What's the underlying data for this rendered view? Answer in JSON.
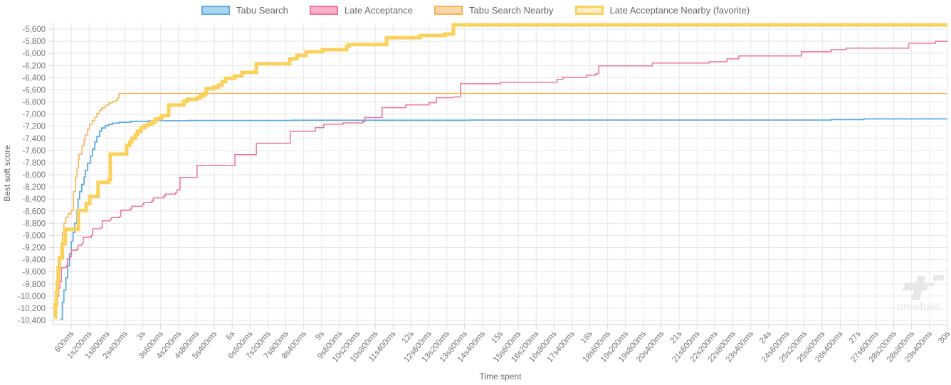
{
  "legend": [
    {
      "label": "Tabu Search",
      "color": "#5FAADE",
      "fill": "#A8D4F0",
      "border_width": 2
    },
    {
      "label": "Late Acceptance",
      "color": "#F0719A",
      "fill": "#F9AFC7",
      "border_width": 2
    },
    {
      "label": "Tabu Search Nearby",
      "color": "#F7B155",
      "fill": "#FBD8A9",
      "border_width": 2
    },
    {
      "label": "Late Acceptance Nearby (favorite)",
      "color": "#FAD15C",
      "fill": "#FDEFC4",
      "border_width": 3
    }
  ],
  "watermark": {
    "text": "timefold"
  },
  "chart_data": {
    "type": "line",
    "stepped": true,
    "title": "",
    "xlabel": "Time spent",
    "ylabel": "Best soft score",
    "grid": true,
    "legend_position": "top",
    "x_unit": "ms",
    "xlim": [
      0,
      30000
    ],
    "ylim": [
      -10520,
      -5520
    ],
    "x_tick_interval_ms": 600,
    "x_tick_labels": [
      "600ms",
      "1s200ms",
      "1s800ms",
      "2s400ms",
      "3s",
      "3s600ms",
      "4s200ms",
      "4s800ms",
      "5s400ms",
      "6s",
      "6s600ms",
      "7s200ms",
      "7s800ms",
      "8s400ms",
      "9s",
      "9s600ms",
      "10s200ms",
      "10s800ms",
      "11s400ms",
      "12s",
      "12s600ms",
      "13s200ms",
      "13s800ms",
      "14s400ms",
      "15s",
      "15s600ms",
      "16s200ms",
      "16s800ms",
      "17s400ms",
      "18s",
      "18s600ms",
      "19s200ms",
      "19s800ms",
      "20s400ms",
      "21s",
      "21s600ms",
      "22s200ms",
      "22s800ms",
      "23s400ms",
      "24s",
      "24s600ms",
      "25s200ms",
      "25s800ms",
      "26s400ms",
      "27s",
      "27s600ms",
      "28s200ms",
      "28s800ms",
      "29s400ms",
      "30s"
    ],
    "y_ticks": [
      -5600,
      -5800,
      -6000,
      -6200,
      -6400,
      -6600,
      -6800,
      -7000,
      -7200,
      -7400,
      -7600,
      -7800,
      -8000,
      -8200,
      -8400,
      -8600,
      -8800,
      -9000,
      -9200,
      -9400,
      -9600,
      -9800,
      -10000,
      -10200,
      -10400
    ],
    "y_tick_labels": [
      "-5,600",
      "-5,800",
      "-6,000",
      "-6,200",
      "-6,400",
      "-6,600",
      "-6,800",
      "-7,000",
      "-7,200",
      "-7,400",
      "-7,600",
      "-7,800",
      "-8,000",
      "-8,200",
      "-8,400",
      "-8,600",
      "-8,800",
      "-9,000",
      "-9,200",
      "-9,400",
      "-9,600",
      "-9,800",
      "-10,000",
      "-10,200",
      "-10,400"
    ],
    "series": [
      {
        "name": "Tabu Search",
        "color": "#5FAADE",
        "line_width": 1.8,
        "final_score": -7080,
        "points": [
          [
            240,
            -10380
          ],
          [
            300,
            -10100
          ],
          [
            350,
            -9900
          ],
          [
            420,
            -9700
          ],
          [
            480,
            -9500
          ],
          [
            540,
            -9300
          ],
          [
            600,
            -9100
          ],
          [
            660,
            -8950
          ],
          [
            720,
            -8800
          ],
          [
            790,
            -8590
          ],
          [
            830,
            -8400
          ],
          [
            880,
            -8280
          ],
          [
            950,
            -8160
          ],
          [
            1030,
            -8040
          ],
          [
            1070,
            -7930
          ],
          [
            1150,
            -7810
          ],
          [
            1250,
            -7690
          ],
          [
            1310,
            -7580
          ],
          [
            1390,
            -7460
          ],
          [
            1460,
            -7370
          ],
          [
            1550,
            -7280
          ],
          [
            1620,
            -7230
          ],
          [
            1740,
            -7190
          ],
          [
            1860,
            -7170
          ],
          [
            1980,
            -7150
          ],
          [
            2200,
            -7135
          ],
          [
            2600,
            -7120
          ],
          [
            3200,
            -7110
          ],
          [
            4500,
            -7105
          ],
          [
            8000,
            -7102
          ],
          [
            14000,
            -7098
          ],
          [
            26100,
            -7090
          ],
          [
            27200,
            -7080
          ],
          [
            30000,
            -7080
          ]
        ]
      },
      {
        "name": "Late Acceptance",
        "color": "#F0719A",
        "line_width": 1.5,
        "final_score": -5795,
        "points": [
          [
            60,
            -10320
          ],
          [
            100,
            -10150
          ],
          [
            140,
            -10000
          ],
          [
            180,
            -9870
          ],
          [
            220,
            -9760
          ],
          [
            270,
            -9530
          ],
          [
            430,
            -9500
          ],
          [
            470,
            -9380
          ],
          [
            560,
            -9350
          ],
          [
            610,
            -9245
          ],
          [
            790,
            -9225
          ],
          [
            830,
            -9160
          ],
          [
            950,
            -9140
          ],
          [
            1000,
            -9030
          ],
          [
            1270,
            -9000
          ],
          [
            1310,
            -8890
          ],
          [
            1600,
            -8870
          ],
          [
            1640,
            -8760
          ],
          [
            1910,
            -8735
          ],
          [
            1950,
            -8705
          ],
          [
            2220,
            -8690
          ],
          [
            2260,
            -8585
          ],
          [
            2590,
            -8555
          ],
          [
            2630,
            -8520
          ],
          [
            2990,
            -8495
          ],
          [
            3030,
            -8460
          ],
          [
            3300,
            -8435
          ],
          [
            3350,
            -8380
          ],
          [
            3700,
            -8355
          ],
          [
            3760,
            -8320
          ],
          [
            4100,
            -8295
          ],
          [
            4150,
            -8250
          ],
          [
            4250,
            -8045
          ],
          [
            4820,
            -7845
          ],
          [
            6090,
            -7670
          ],
          [
            6810,
            -7480
          ],
          [
            7950,
            -7285
          ],
          [
            8790,
            -7225
          ],
          [
            9070,
            -7165
          ],
          [
            9720,
            -7145
          ],
          [
            10390,
            -7125
          ],
          [
            10450,
            -7058
          ],
          [
            11030,
            -6895
          ],
          [
            11820,
            -6848
          ],
          [
            12610,
            -6813
          ],
          [
            12850,
            -6730
          ],
          [
            13420,
            -6718
          ],
          [
            13660,
            -6500
          ],
          [
            15000,
            -6475
          ],
          [
            16900,
            -6428
          ],
          [
            17100,
            -6393
          ],
          [
            17900,
            -6358
          ],
          [
            18200,
            -6335
          ],
          [
            18300,
            -6205
          ],
          [
            20100,
            -6160
          ],
          [
            22000,
            -6138
          ],
          [
            22600,
            -6090
          ],
          [
            23000,
            -6043
          ],
          [
            25100,
            -5973
          ],
          [
            26100,
            -5938
          ],
          [
            26600,
            -5913
          ],
          [
            28700,
            -5833
          ],
          [
            29600,
            -5800
          ],
          [
            30000,
            -5795
          ]
        ]
      },
      {
        "name": "Tabu Search Nearby",
        "color": "#F7B155",
        "line_width": 1.5,
        "final_score": -6660,
        "points": [
          [
            50,
            -10350
          ],
          [
            90,
            -10100
          ],
          [
            130,
            -9850
          ],
          [
            170,
            -9600
          ],
          [
            210,
            -9350
          ],
          [
            250,
            -9150
          ],
          [
            300,
            -8950
          ],
          [
            350,
            -8800
          ],
          [
            420,
            -8700
          ],
          [
            500,
            -8640
          ],
          [
            590,
            -8590
          ],
          [
            670,
            -8280
          ],
          [
            740,
            -8045
          ],
          [
            790,
            -7890
          ],
          [
            840,
            -7750
          ],
          [
            860,
            -7660
          ],
          [
            960,
            -7520
          ],
          [
            1030,
            -7425
          ],
          [
            1070,
            -7343
          ],
          [
            1150,
            -7250
          ],
          [
            1220,
            -7167
          ],
          [
            1310,
            -7109
          ],
          [
            1390,
            -7050
          ],
          [
            1460,
            -6990
          ],
          [
            1550,
            -6935
          ],
          [
            1620,
            -6898
          ],
          [
            1740,
            -6851
          ],
          [
            1860,
            -6816
          ],
          [
            1980,
            -6792
          ],
          [
            2100,
            -6770
          ],
          [
            2150,
            -6734
          ],
          [
            2200,
            -6660
          ],
          [
            30000,
            -6660
          ]
        ]
      },
      {
        "name": "Late Acceptance Nearby (favorite)",
        "color": "#FAD15C",
        "line_width": 5,
        "favorite": true,
        "final_score": -5530,
        "points": [
          [
            40,
            -10350
          ],
          [
            70,
            -10150
          ],
          [
            100,
            -9950
          ],
          [
            130,
            -9770
          ],
          [
            160,
            -9530
          ],
          [
            200,
            -9370
          ],
          [
            300,
            -9140
          ],
          [
            400,
            -8900
          ],
          [
            840,
            -8590
          ],
          [
            1100,
            -8475
          ],
          [
            1220,
            -8358
          ],
          [
            1500,
            -8125
          ],
          [
            1860,
            -8078
          ],
          [
            1910,
            -7660
          ],
          [
            2460,
            -7518
          ],
          [
            2560,
            -7460
          ],
          [
            2630,
            -7400
          ],
          [
            2750,
            -7343
          ],
          [
            2820,
            -7284
          ],
          [
            2940,
            -7226
          ],
          [
            3060,
            -7190
          ],
          [
            3180,
            -7167
          ],
          [
            3300,
            -7132
          ],
          [
            3420,
            -7085
          ],
          [
            3530,
            -7073
          ],
          [
            3630,
            -7026
          ],
          [
            3870,
            -6851
          ],
          [
            4370,
            -6792
          ],
          [
            4490,
            -6757
          ],
          [
            4820,
            -6734
          ],
          [
            4940,
            -6699
          ],
          [
            5060,
            -6664
          ],
          [
            5130,
            -6582
          ],
          [
            5370,
            -6559
          ],
          [
            5540,
            -6524
          ],
          [
            5660,
            -6465
          ],
          [
            5780,
            -6410
          ],
          [
            6090,
            -6372
          ],
          [
            6330,
            -6313
          ],
          [
            6810,
            -6170
          ],
          [
            7930,
            -6090
          ],
          [
            8170,
            -6033
          ],
          [
            8480,
            -5975
          ],
          [
            9030,
            -5940
          ],
          [
            9840,
            -5880
          ],
          [
            9910,
            -5855
          ],
          [
            11180,
            -5740
          ],
          [
            12300,
            -5705
          ],
          [
            13130,
            -5682
          ],
          [
            13420,
            -5530
          ],
          [
            30000,
            -5530
          ]
        ]
      }
    ]
  }
}
